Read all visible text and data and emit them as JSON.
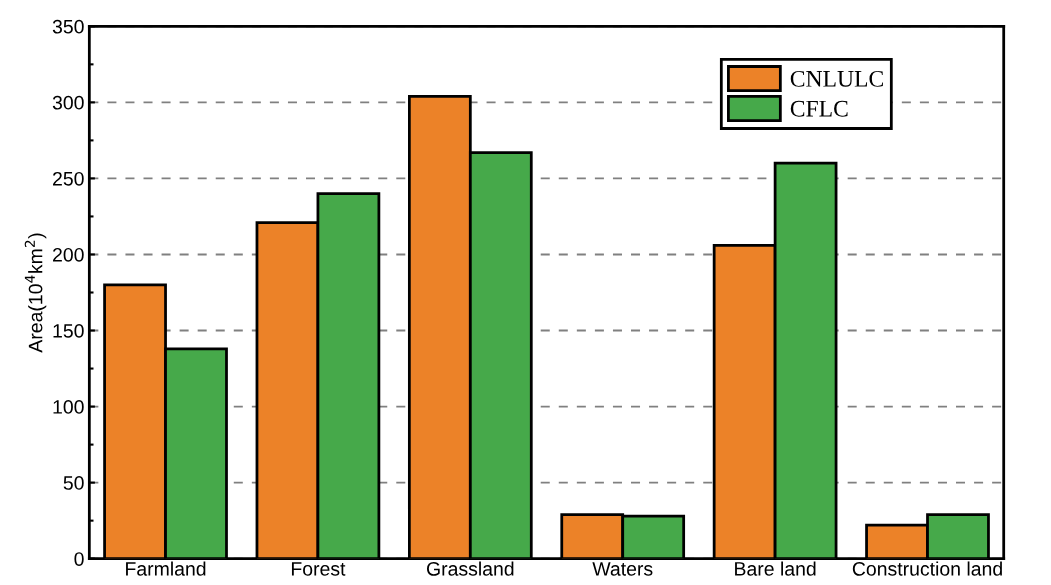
{
  "chart_data": {
    "type": "bar",
    "categories": [
      "Farmland",
      "Forest",
      "Grassland",
      "Waters",
      "Bare land",
      "Construction land"
    ],
    "ylabel": "Area(10$^{4}$km$^{2}$)",
    "series": [
      {
        "name": "CNLULC",
        "color": "#ec8228",
        "values": [
          180,
          221,
          304,
          29,
          206,
          22
        ]
      },
      {
        "name": "CFLC",
        "color": "#46a94a",
        "values": [
          138,
          240,
          267,
          28,
          260,
          29
        ]
      }
    ],
    "ylim": [
      0,
      350
    ],
    "yticks": [
      0,
      50,
      100,
      150,
      200,
      250,
      300,
      350
    ],
    "grid": "y",
    "legend": "top right"
  }
}
